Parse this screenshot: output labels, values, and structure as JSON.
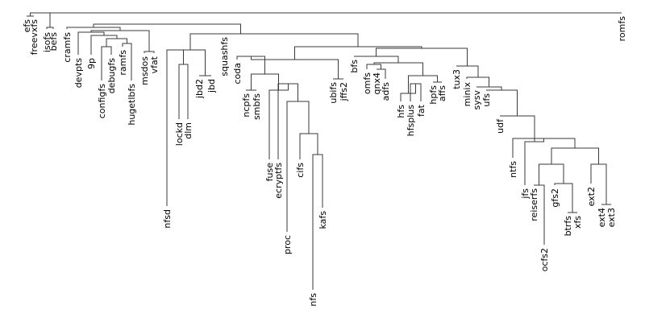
{
  "diagram": {
    "type": "dendrogram",
    "line_color": "#3a3a3a",
    "text_color": "#000000",
    "leaves": [
      "efs",
      "freevxfs",
      "isofs",
      "befs",
      "cramfs",
      "devpts",
      "9p",
      "configfs",
      "debugfs",
      "ramfs",
      "hugetlbfs",
      "msdos",
      "vfat",
      "nfsd",
      "lockd",
      "dlm",
      "jbd2",
      "jbd",
      "squashfs",
      "coda",
      "ncpfs",
      "smbfs",
      "fuse",
      "ecryptfs",
      "proc",
      "cifs",
      "nfs",
      "kafs",
      "ubifs",
      "jffs2",
      "bfs",
      "omfs",
      "qnx4",
      "adfs",
      "hfs",
      "hfsplus",
      "fat",
      "hpfs",
      "affs",
      "tux3",
      "minix",
      "sysv",
      "ufs",
      "udf",
      "ntfs",
      "jfs",
      "reiserfs",
      "ocfs2",
      "gfs2",
      "btrfs",
      "xfs",
      "ext2",
      "ext4",
      "ext3",
      "romfs"
    ]
  }
}
